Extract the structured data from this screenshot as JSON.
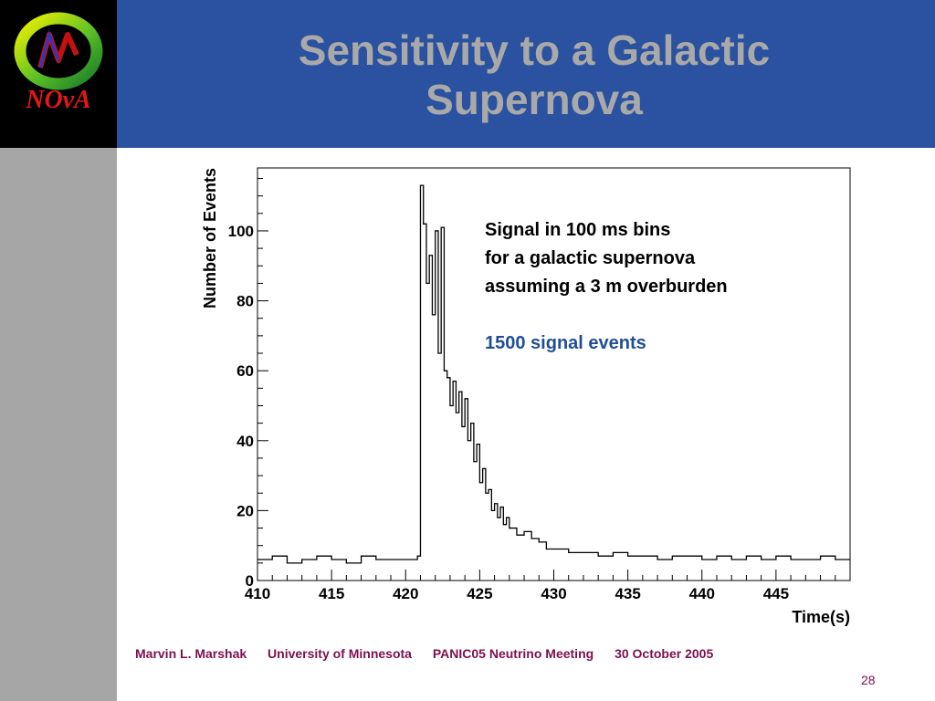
{
  "slide": {
    "title_lines": [
      "Sensitivity to a Galactic",
      "Supernova"
    ],
    "logo_text": "NOvA",
    "footer": {
      "author": "Marvin L. Marshak",
      "institution": "University of Minnesota",
      "meeting": "PANIC05 Neutrino Meeting",
      "date": "30 October 2005"
    },
    "page_number": "28"
  },
  "colors": {
    "title_bar": "#2a52a0",
    "title_text": "#a9a9a9",
    "footer_text": "#7b1050",
    "annotation_highlight": "#1f4e96",
    "side_stripe": "#a6a6a6"
  },
  "chart_data": {
    "type": "line",
    "title": "",
    "xlabel": "Time(s)",
    "ylabel": "Number of Events",
    "xlim": [
      410,
      450
    ],
    "ylim": [
      0,
      118
    ],
    "x_ticks": [
      410,
      415,
      420,
      425,
      430,
      435,
      440,
      445
    ],
    "y_ticks": [
      0,
      20,
      40,
      60,
      80,
      100
    ],
    "grid": false,
    "legend": "none",
    "annotations": [
      "Signal in 100 ms bins",
      "for a galactic supernova",
      "assuming a 3 m overburden",
      "1500 signal events"
    ],
    "series": [
      {
        "x": [
          410.0,
          411.0,
          412.0,
          413.0,
          414.0,
          415.0,
          416.0,
          417.0,
          418.0,
          419.0,
          420.0,
          420.8,
          421.0,
          421.2,
          421.4,
          421.6,
          421.8,
          422.0,
          422.2,
          422.4,
          422.6,
          422.8,
          423.0,
          423.2,
          423.4,
          423.6,
          423.8,
          424.0,
          424.2,
          424.4,
          424.6,
          424.8,
          425.0,
          425.2,
          425.4,
          425.6,
          425.8,
          426.0,
          426.2,
          426.4,
          426.6,
          426.8,
          427.0,
          427.5,
          428.0,
          428.5,
          429.0,
          429.5,
          430.0,
          431.0,
          432.0,
          433.0,
          434.0,
          435.0,
          436.0,
          437.0,
          438.0,
          439.0,
          440.0,
          441.0,
          442.0,
          443.0,
          444.0,
          445.0,
          446.0,
          447.0,
          448.0,
          449.0,
          450.0
        ],
        "y": [
          6,
          7,
          5,
          6,
          7,
          6,
          5,
          7,
          6,
          6,
          6,
          7,
          113,
          102,
          85,
          93,
          76,
          100,
          65,
          101,
          60,
          58,
          50,
          57,
          48,
          54,
          44,
          52,
          40,
          45,
          34,
          39,
          28,
          32,
          25,
          26,
          20,
          22,
          18,
          21,
          16,
          18,
          15,
          13,
          14,
          12,
          11,
          9,
          9,
          8,
          8,
          7,
          8,
          7,
          7,
          6,
          7,
          7,
          6,
          7,
          6,
          7,
          6,
          7,
          6,
          6,
          7,
          6,
          6
        ]
      }
    ]
  }
}
